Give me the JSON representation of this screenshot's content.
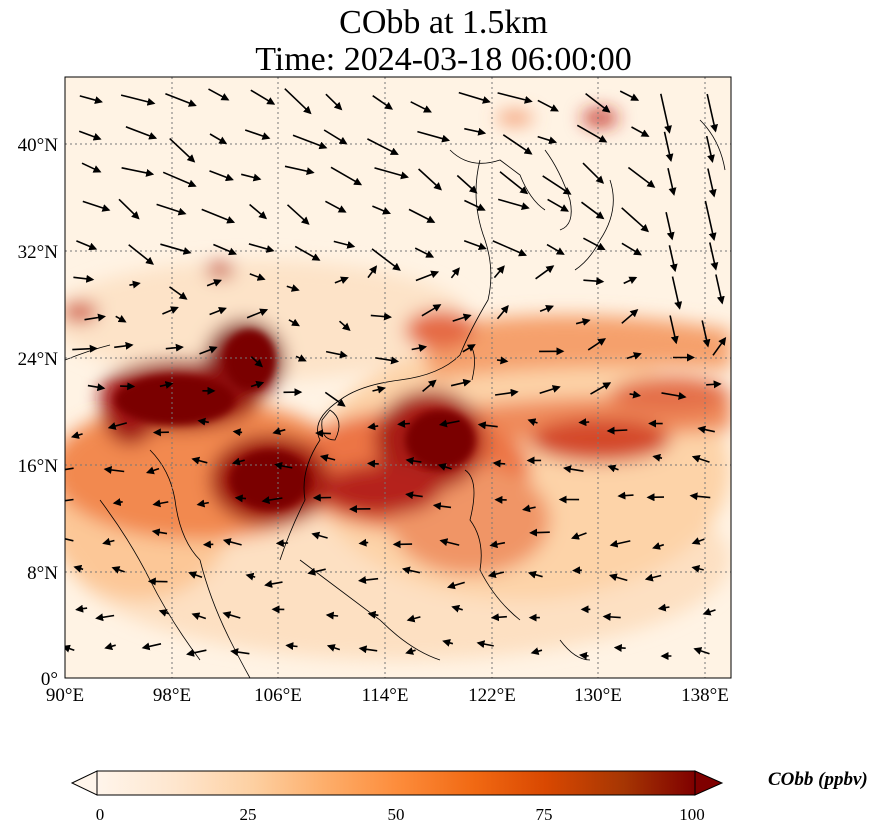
{
  "title": {
    "line1": "CObb at 1.5km",
    "line2": "Time: 2024-03-18 06:00:00"
  },
  "map": {
    "lon_ticks": [
      "90°E",
      "98°E",
      "106°E",
      "114°E",
      "122°E",
      "130°E",
      "138°E"
    ],
    "lat_ticks": [
      "0°",
      "8°N",
      "16°N",
      "24°N",
      "32°N",
      "40°N"
    ],
    "gridlines": true,
    "field": "CObb",
    "colormap": [
      "#fff5eb",
      "#fee6ce",
      "#fdd0a2",
      "#fdae6b",
      "#fd8d3c",
      "#f16913",
      "#d94801",
      "#a63603",
      "#7f2704"
    ]
  },
  "colorbar": {
    "ticks": [
      "0",
      "25",
      "50",
      "75",
      "100"
    ],
    "label": "CObb (ppbv)",
    "extend": "both"
  }
}
